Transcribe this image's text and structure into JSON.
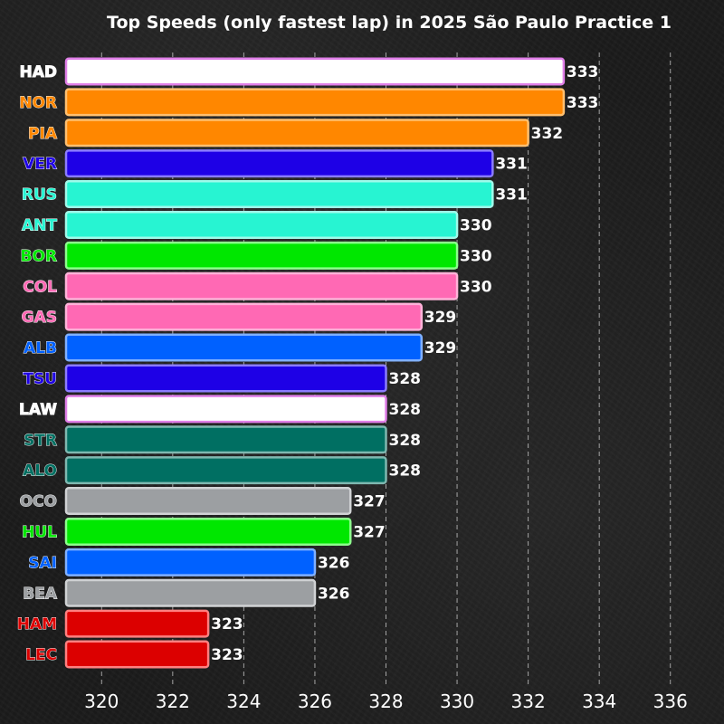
{
  "chart_data": {
    "type": "bar",
    "orientation": "horizontal",
    "title": "Top Speeds (only fastest lap) in 2025 São Paulo Practice 1",
    "xlabel": "",
    "ylabel": "",
    "xlim": [
      319,
      337
    ],
    "xticks": [
      320,
      322,
      324,
      326,
      328,
      330,
      332,
      334,
      336
    ],
    "grid": "vertical dashed",
    "bars": [
      {
        "driver": "HAD",
        "value": 333,
        "color": "#ffffff",
        "edge": "#e07fe8",
        "label_color": "#ffffff"
      },
      {
        "driver": "NOR",
        "value": 333,
        "color": "#ff8700",
        "edge": "#ffc070",
        "label_color": "#ff8700"
      },
      {
        "driver": "PIA",
        "value": 332,
        "color": "#ff8700",
        "edge": "#ffc070",
        "label_color": "#ff8700"
      },
      {
        "driver": "VER",
        "value": 331,
        "color": "#1e00e6",
        "edge": "#8b7cff",
        "label_color": "#1e00e6"
      },
      {
        "driver": "RUS",
        "value": 331,
        "color": "#27f4d2",
        "edge": "#9ffaea",
        "label_color": "#27f4d2"
      },
      {
        "driver": "ANT",
        "value": 330,
        "color": "#27f4d2",
        "edge": "#9ffaea",
        "label_color": "#27f4d2"
      },
      {
        "driver": "BOR",
        "value": 330,
        "color": "#00e700",
        "edge": "#8cff8c",
        "label_color": "#00e700"
      },
      {
        "driver": "COL",
        "value": 330,
        "color": "#ff69b4",
        "edge": "#ffb3d9",
        "label_color": "#ff69b4"
      },
      {
        "driver": "GAS",
        "value": 329,
        "color": "#ff69b4",
        "edge": "#ffb3d9",
        "label_color": "#ff69b4"
      },
      {
        "driver": "ALB",
        "value": 329,
        "color": "#0061ff",
        "edge": "#80b0ff",
        "label_color": "#0061ff"
      },
      {
        "driver": "TSU",
        "value": 328,
        "color": "#1e00e6",
        "edge": "#8b7cff",
        "label_color": "#1e00e6"
      },
      {
        "driver": "LAW",
        "value": 328,
        "color": "#ffffff",
        "edge": "#e07fe8",
        "label_color": "#ffffff"
      },
      {
        "driver": "STR",
        "value": 328,
        "color": "#006f62",
        "edge": "#7fb8b0",
        "label_color": "#006f62"
      },
      {
        "driver": "ALO",
        "value": 328,
        "color": "#006f62",
        "edge": "#7fb8b0",
        "label_color": "#006f62"
      },
      {
        "driver": "OCO",
        "value": 327,
        "color": "#9c9fa2",
        "edge": "#d0d2d4",
        "label_color": "#9c9fa2"
      },
      {
        "driver": "HUL",
        "value": 327,
        "color": "#00e700",
        "edge": "#8cff8c",
        "label_color": "#00e700"
      },
      {
        "driver": "SAI",
        "value": 326,
        "color": "#0061ff",
        "edge": "#80b0ff",
        "label_color": "#0061ff"
      },
      {
        "driver": "BEA",
        "value": 326,
        "color": "#9c9fa2",
        "edge": "#d0d2d4",
        "label_color": "#9c9fa2"
      },
      {
        "driver": "HAM",
        "value": 323,
        "color": "#dc0000",
        "edge": "#ff8080",
        "label_color": "#dc0000"
      },
      {
        "driver": "LEC",
        "value": 323,
        "color": "#dc0000",
        "edge": "#ff8080",
        "label_color": "#dc0000"
      }
    ]
  }
}
